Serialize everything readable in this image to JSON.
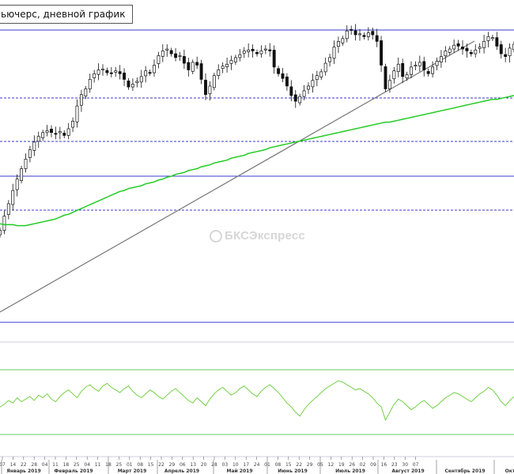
{
  "header": {
    "title": "ьючерс, дневной график"
  },
  "watermark": {
    "text": "БКСЭкспресс"
  },
  "chart_data": {
    "type": "candlestick",
    "title": "ьючерс, дневной график",
    "x_day_ticks": [
      "07",
      "14",
      "22",
      "28",
      "04",
      "11",
      "18",
      "25",
      "04",
      "11",
      "18",
      "25",
      "01",
      "08",
      "15",
      "22",
      "29",
      "06",
      "13",
      "20",
      "28",
      "03",
      "10",
      "17",
      "24",
      "01",
      "08",
      "15",
      "22",
      "29",
      "05",
      "12",
      "19",
      "26",
      "02",
      "09",
      "16",
      "23",
      "30",
      "07"
    ],
    "x_month_labels": [
      "Январь 2019",
      "Февраль 2019",
      "Март 2019",
      "Апрель 2019",
      "Май 2019",
      "Июнь 2019",
      "Июль 2019",
      "Август 2019",
      "Сентябрь 2019",
      "Окт"
    ],
    "close_series": [
      47,
      62,
      75,
      89,
      101,
      112,
      122,
      132,
      140,
      146,
      150,
      152,
      150,
      149,
      151,
      147,
      154,
      162,
      178,
      190,
      196,
      206,
      212,
      216,
      217,
      213,
      212,
      215,
      212,
      206,
      198,
      201,
      204,
      209,
      215,
      213,
      221,
      231,
      236,
      238,
      233,
      229,
      231,
      223,
      216,
      224,
      221,
      206,
      190,
      199,
      210,
      216,
      220,
      222,
      226,
      229,
      232,
      236,
      237,
      236,
      233,
      236,
      238,
      236,
      219,
      212,
      207,
      199,
      189,
      183,
      188,
      194,
      199,
      205,
      210,
      214,
      223,
      229,
      240,
      246,
      249,
      257,
      258,
      253,
      254,
      251,
      255,
      253,
      246,
      221,
      196,
      205,
      215,
      222,
      209,
      211,
      219,
      221,
      224,
      216,
      212,
      219,
      225,
      230,
      236,
      238,
      242,
      241,
      238,
      236,
      233,
      237,
      240,
      246,
      251,
      250,
      241,
      233,
      230,
      239,
      243
    ],
    "ma_series": [
      54,
      53,
      53,
      53,
      52,
      52,
      52,
      53,
      54,
      55,
      56,
      57,
      58,
      59,
      61,
      63,
      64,
      66,
      68,
      70,
      72,
      74,
      76,
      78,
      80,
      82,
      84,
      86,
      88,
      89,
      91,
      92,
      93,
      94,
      96,
      97,
      98,
      100,
      101,
      103,
      104,
      106,
      107,
      108,
      110,
      111,
      112,
      114,
      115,
      116,
      118,
      119,
      120,
      121,
      123,
      124,
      125,
      126,
      128,
      129,
      130,
      131,
      132,
      134,
      135,
      136,
      137,
      138,
      139,
      140,
      141,
      142,
      143,
      144,
      145,
      146,
      147,
      148,
      149,
      150,
      151,
      152,
      153,
      154,
      155,
      156,
      157,
      158,
      159,
      160,
      161,
      161,
      162,
      163,
      164,
      165,
      166,
      167,
      168,
      169,
      170,
      171,
      172,
      173,
      174,
      175,
      176,
      177,
      178,
      179,
      180,
      181,
      182,
      183,
      184,
      185,
      185,
      186,
      187,
      188,
      189
    ],
    "indicator_series": [
      40,
      42,
      45,
      43,
      47,
      44,
      46,
      48,
      45,
      49,
      47,
      50,
      46,
      44,
      48,
      51,
      53,
      50,
      47,
      52,
      55,
      57,
      54,
      52,
      56,
      58,
      55,
      53,
      51,
      54,
      56,
      52,
      49,
      47,
      50,
      53,
      51,
      48,
      46,
      49,
      52,
      54,
      51,
      48,
      45,
      43,
      47,
      44,
      41,
      46,
      50,
      53,
      55,
      52,
      49,
      51,
      54,
      56,
      53,
      50,
      48,
      52,
      55,
      57,
      54,
      51,
      47,
      43,
      40,
      36,
      33,
      38,
      42,
      45,
      48,
      51,
      54,
      56,
      58,
      60,
      59,
      57,
      55,
      53,
      54,
      52,
      50,
      47,
      43,
      40,
      30,
      36,
      42,
      46,
      44,
      41,
      38,
      40,
      43,
      45,
      42,
      39,
      41,
      44,
      47,
      49,
      51,
      50,
      48,
      46,
      44,
      47,
      50,
      52,
      55,
      53,
      49,
      44,
      41,
      45,
      48
    ],
    "main_horizontal_levels": [
      "resistance-top",
      "mid-1",
      "mid-2",
      "mid-3",
      "mid-4",
      "bottom"
    ],
    "indicator_levels": [
      "upper",
      "lower"
    ],
    "grid": false,
    "legend": "none"
  }
}
